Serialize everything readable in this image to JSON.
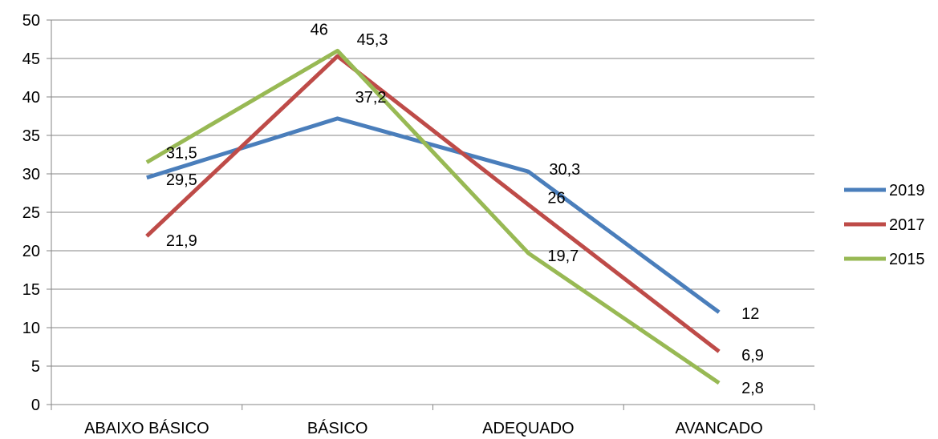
{
  "chart_data": {
    "type": "line",
    "categories": [
      "ABAIXO BÁSICO",
      "BÁSICO",
      "ADEQUADO",
      "AVANCADO"
    ],
    "series": [
      {
        "name": "2019",
        "values": [
          29.5,
          37.2,
          30.3,
          12
        ],
        "labels": [
          "29,5",
          "37,2",
          "30,3",
          "12"
        ],
        "color": "#4a7ebb"
      },
      {
        "name": "2017",
        "values": [
          21.9,
          45.3,
          26,
          6.9
        ],
        "labels": [
          "21,9",
          "45,3",
          "26",
          "6,9"
        ],
        "color": "#be4b48"
      },
      {
        "name": "2015",
        "values": [
          31.5,
          46,
          19.7,
          2.8
        ],
        "labels": [
          "31,5",
          "46",
          "19,7",
          "2,8"
        ],
        "color": "#98b954"
      }
    ],
    "ylim": [
      0,
      50
    ],
    "yticks": [
      0,
      5,
      10,
      15,
      20,
      25,
      30,
      35,
      40,
      45,
      50
    ],
    "grid": true,
    "legend": "right"
  }
}
